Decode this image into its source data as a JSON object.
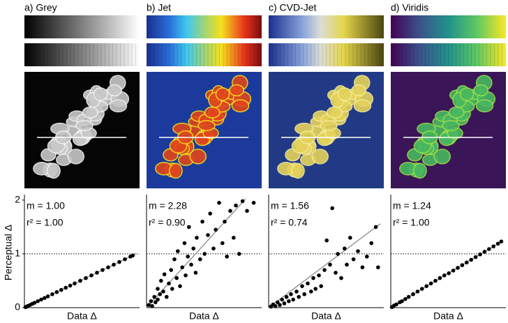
{
  "chart_data": [
    {
      "type": "scatter",
      "title": "a) Grey",
      "x_label": "Data Δ",
      "y_label": "Perceptual Δ",
      "slope_label": "m = 1.00",
      "slope": 1.0,
      "r2_label": "r² = 1.00",
      "reference_line": 1,
      "xlim": [
        0,
        1
      ],
      "ylim": [
        0,
        2.05
      ],
      "yticks": [
        0,
        1,
        2
      ],
      "color": "#000000",
      "x": [
        0.01,
        0.02,
        0.03,
        0.05,
        0.07,
        0.09,
        0.12,
        0.15,
        0.18,
        0.21,
        0.25,
        0.29,
        0.33,
        0.37,
        0.41,
        0.45,
        0.5,
        0.55,
        0.6,
        0.65,
        0.7,
        0.75,
        0.8,
        0.85,
        0.9,
        0.95,
        0.97
      ],
      "values": [
        0.01,
        0.02,
        0.03,
        0.05,
        0.07,
        0.09,
        0.12,
        0.15,
        0.18,
        0.21,
        0.25,
        0.29,
        0.33,
        0.37,
        0.41,
        0.45,
        0.5,
        0.55,
        0.6,
        0.65,
        0.7,
        0.75,
        0.8,
        0.85,
        0.9,
        0.95,
        0.97
      ]
    },
    {
      "type": "scatter",
      "title": "b) Jet",
      "x_label": "Data Δ",
      "slope_label": "m = 2.28",
      "slope": 2.28,
      "r2_label": "r² = 0.90",
      "reference_line": 1,
      "xlim": [
        0,
        1
      ],
      "ylim": [
        0,
        2.05
      ],
      "color": "#000000",
      "x": [
        0.02,
        0.04,
        0.05,
        0.07,
        0.08,
        0.1,
        0.1,
        0.12,
        0.13,
        0.15,
        0.16,
        0.18,
        0.2,
        0.22,
        0.23,
        0.25,
        0.27,
        0.28,
        0.3,
        0.32,
        0.34,
        0.35,
        0.37,
        0.38,
        0.4,
        0.42,
        0.44,
        0.45,
        0.48,
        0.5,
        0.52,
        0.55,
        0.57,
        0.6,
        0.62,
        0.65,
        0.68,
        0.7,
        0.72,
        0.75,
        0.78,
        0.8,
        0.83,
        0.86,
        0.9,
        0.96
      ],
      "values": [
        0.05,
        0.12,
        0.03,
        0.2,
        0.1,
        0.35,
        0.15,
        0.25,
        0.5,
        0.3,
        0.62,
        0.2,
        0.45,
        0.7,
        0.35,
        0.9,
        0.55,
        1.05,
        0.4,
        0.75,
        1.2,
        0.6,
        0.95,
        1.5,
        0.8,
        1.1,
        0.65,
        1.3,
        0.9,
        1.6,
        1.0,
        1.35,
        1.75,
        1.1,
        1.45,
        1.95,
        1.2,
        1.6,
        0.95,
        1.8,
        1.3,
        1.9,
        1.0,
        1.98,
        1.8,
        1.95
      ]
    },
    {
      "type": "scatter",
      "title": "c) CVD-Jet",
      "x_label": "Data Δ",
      "slope_label": "m = 1.56",
      "slope": 1.56,
      "r2_label": "r² = 0.74",
      "reference_line": 1,
      "xlim": [
        0,
        1
      ],
      "ylim": [
        0,
        2.05
      ],
      "color": "#000000",
      "x": [
        0.02,
        0.04,
        0.06,
        0.08,
        0.1,
        0.12,
        0.14,
        0.16,
        0.18,
        0.2,
        0.22,
        0.25,
        0.27,
        0.3,
        0.32,
        0.35,
        0.38,
        0.4,
        0.42,
        0.45,
        0.47,
        0.5,
        0.52,
        0.55,
        0.57,
        0.6,
        0.62,
        0.65,
        0.68,
        0.7,
        0.73,
        0.76,
        0.8,
        0.84,
        0.88,
        0.92,
        0.96,
        0.98
      ],
      "values": [
        0.02,
        0.06,
        0.03,
        0.1,
        0.05,
        0.15,
        0.08,
        0.2,
        0.12,
        0.25,
        0.15,
        0.3,
        0.2,
        0.4,
        0.25,
        0.45,
        0.3,
        0.55,
        0.35,
        0.6,
        0.4,
        0.7,
        1.25,
        0.8,
        1.85,
        0.65,
        1.0,
        0.55,
        1.1,
        0.8,
        1.3,
        0.9,
        1.05,
        0.75,
        0.95,
        1.2,
        1.5,
        0.75
      ]
    },
    {
      "type": "scatter",
      "title": "d) Viridis",
      "x_label": "Data Δ",
      "slope_label": "m = 1.24",
      "slope": 1.24,
      "r2_label": "r² = 1.00",
      "reference_line": 1,
      "xlim": [
        0,
        1
      ],
      "ylim": [
        0,
        2.05
      ],
      "color": "#000000",
      "x": [
        0.01,
        0.03,
        0.05,
        0.08,
        0.1,
        0.13,
        0.16,
        0.2,
        0.24,
        0.28,
        0.32,
        0.36,
        0.4,
        0.44,
        0.48,
        0.52,
        0.56,
        0.6,
        0.64,
        0.68,
        0.72,
        0.76,
        0.8,
        0.84,
        0.88,
        0.92,
        0.96,
        0.99
      ],
      "values": [
        0.01,
        0.04,
        0.06,
        0.1,
        0.12,
        0.16,
        0.2,
        0.25,
        0.3,
        0.35,
        0.4,
        0.45,
        0.5,
        0.55,
        0.6,
        0.64,
        0.69,
        0.74,
        0.79,
        0.84,
        0.89,
        0.94,
        0.99,
        1.04,
        1.09,
        1.14,
        1.19,
        1.23
      ]
    }
  ]
}
